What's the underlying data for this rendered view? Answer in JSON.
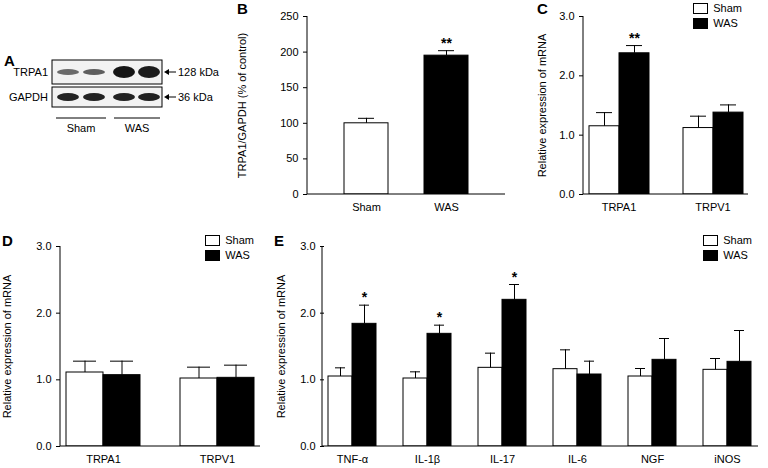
{
  "blot": {
    "title": "A",
    "rows": [
      {
        "label": "TRPA1",
        "mw": "128 kDa"
      },
      {
        "label": "GAPDH",
        "mw": "36 kDa"
      }
    ],
    "groups": [
      "Sham",
      "WAS"
    ]
  },
  "chart_data": [
    {
      "type": "bar",
      "title": "B",
      "categories": [
        "Sham",
        "WAS"
      ],
      "values": [
        100,
        195
      ],
      "errors": [
        7,
        7
      ],
      "significance": [
        null,
        "**"
      ],
      "colors": [
        "#ffffff",
        "#000000"
      ],
      "ylabel": "TRPA1/GAPDH (% of control)",
      "ylim": [
        0,
        250
      ],
      "yticks": [
        0,
        50,
        100,
        150,
        200,
        250
      ]
    },
    {
      "type": "bar",
      "title": "C",
      "categories": [
        "TRPA1",
        "TRPV1"
      ],
      "series": [
        {
          "name": "Sham",
          "color": "#ffffff",
          "values": [
            1.15,
            1.12
          ],
          "errors": [
            0.23,
            0.2
          ],
          "significance": [
            null,
            null
          ]
        },
        {
          "name": "WAS",
          "color": "#000000",
          "values": [
            2.38,
            1.38
          ],
          "errors": [
            0.13,
            0.13
          ],
          "significance": [
            "**",
            null
          ]
        }
      ],
      "ylabel": "Relative expression of mRNA",
      "ylim": [
        0,
        3
      ],
      "yticks": [
        0,
        1,
        2,
        3
      ],
      "legend": "top-right"
    },
    {
      "type": "bar",
      "title": "D",
      "categories": [
        "TRPA1",
        "TRPV1"
      ],
      "series": [
        {
          "name": "Sham",
          "color": "#ffffff",
          "values": [
            1.11,
            1.02
          ],
          "errors": [
            0.17,
            0.17
          ],
          "significance": [
            null,
            null
          ]
        },
        {
          "name": "WAS",
          "color": "#000000",
          "values": [
            1.07,
            1.03
          ],
          "errors": [
            0.21,
            0.19
          ],
          "significance": [
            null,
            null
          ]
        }
      ],
      "ylabel": "Relative expression of mRNA",
      "ylim": [
        0,
        3
      ],
      "yticks": [
        0,
        1,
        2,
        3
      ],
      "legend": "top-right"
    },
    {
      "type": "bar",
      "title": "E",
      "categories": [
        "TNF-α",
        "IL-1β",
        "IL-17",
        "IL-6",
        "NGF",
        "iNOS"
      ],
      "series": [
        {
          "name": "Sham",
          "color": "#ffffff",
          "values": [
            1.05,
            1.02,
            1.18,
            1.16,
            1.05,
            1.15
          ],
          "errors": [
            0.13,
            0.1,
            0.22,
            0.29,
            0.12,
            0.17
          ],
          "significance": [
            null,
            null,
            null,
            null,
            null,
            null
          ]
        },
        {
          "name": "WAS",
          "color": "#000000",
          "values": [
            1.84,
            1.69,
            2.2,
            1.08,
            1.3,
            1.27
          ],
          "errors": [
            0.28,
            0.13,
            0.23,
            0.2,
            0.32,
            0.47
          ],
          "significance": [
            "*",
            "*",
            "*",
            null,
            null,
            null
          ]
        }
      ],
      "ylabel": "Relative expression of mRNA",
      "ylim": [
        0,
        3
      ],
      "yticks": [
        0,
        1,
        2,
        3
      ],
      "legend": "top-right"
    }
  ]
}
